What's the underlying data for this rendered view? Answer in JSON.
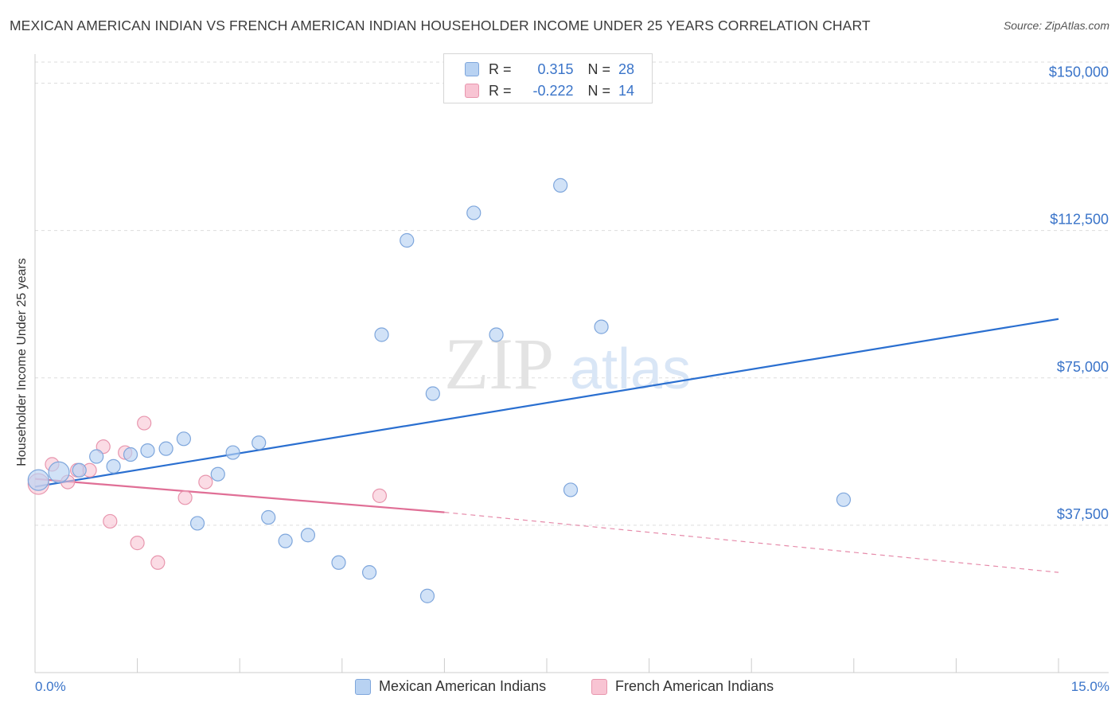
{
  "header": {
    "title": "MEXICAN AMERICAN INDIAN VS FRENCH AMERICAN INDIAN HOUSEHOLDER INCOME UNDER 25 YEARS CORRELATION CHART",
    "source": "Source: ZipAtlas.com"
  },
  "legend": {
    "series1": {
      "r_label": "R =",
      "r_value": "0.315",
      "n_label": "N =",
      "n_value": "28"
    },
    "series2": {
      "r_label": "R =",
      "r_value": "-0.222",
      "n_label": "N =",
      "n_value": "14"
    }
  },
  "watermark": {
    "zip": "ZIP",
    "atlas": "atlas"
  },
  "colors": {
    "blue_fill": "#b8d2f2",
    "blue_stroke": "#7ea6dc",
    "blue_line": "#2a6fd0",
    "pink_fill": "#f8c4d3",
    "pink_stroke": "#e896ae",
    "pink_line": "#e06f96",
    "axis_label": "#3a74c9",
    "grid": "#dddddd"
  },
  "chart_data": {
    "type": "scatter",
    "title": "MEXICAN AMERICAN INDIAN VS FRENCH AMERICAN INDIAN HOUSEHOLDER INCOME UNDER 25 YEARS CORRELATION CHART",
    "xlabel": "",
    "ylabel": "Householder Income Under 25 years",
    "xlim": [
      0,
      15
    ],
    "ylim": [
      0,
      157000
    ],
    "x_tick_labels": [
      "0.0%",
      "15.0%"
    ],
    "y_ticks": [
      37500,
      75000,
      112500,
      150000
    ],
    "y_tick_labels": [
      "$37,500",
      "$75,000",
      "$112,500",
      "$150,000"
    ],
    "series": [
      {
        "name": "Mexican American Indians",
        "r": 0.315,
        "n": 28,
        "points": [
          {
            "x": 0.05,
            "y": 49000,
            "big": true
          },
          {
            "x": 0.35,
            "y": 51000,
            "big": true
          },
          {
            "x": 0.65,
            "y": 51500
          },
          {
            "x": 0.9,
            "y": 55000
          },
          {
            "x": 1.15,
            "y": 52500
          },
          {
            "x": 1.4,
            "y": 55500
          },
          {
            "x": 1.65,
            "y": 56500
          },
          {
            "x": 1.92,
            "y": 57000
          },
          {
            "x": 2.18,
            "y": 59500
          },
          {
            "x": 2.38,
            "y": 38000
          },
          {
            "x": 2.68,
            "y": 50500
          },
          {
            "x": 2.9,
            "y": 56000
          },
          {
            "x": 3.28,
            "y": 58500
          },
          {
            "x": 3.42,
            "y": 39500
          },
          {
            "x": 3.67,
            "y": 33500
          },
          {
            "x": 4.0,
            "y": 35000
          },
          {
            "x": 4.45,
            "y": 28000
          },
          {
            "x": 4.9,
            "y": 25500
          },
          {
            "x": 5.08,
            "y": 86000
          },
          {
            "x": 5.45,
            "y": 110000
          },
          {
            "x": 5.75,
            "y": 19500
          },
          {
            "x": 5.83,
            "y": 71000
          },
          {
            "x": 6.43,
            "y": 117000
          },
          {
            "x": 6.76,
            "y": 86000
          },
          {
            "x": 7.7,
            "y": 124000
          },
          {
            "x": 7.85,
            "y": 46500
          },
          {
            "x": 8.3,
            "y": 88000
          },
          {
            "x": 11.85,
            "y": 44000
          }
        ],
        "trend": {
          "x0": 0,
          "y0": 47300,
          "x1": 15,
          "y1": 90000,
          "style": "solid"
        }
      },
      {
        "name": "French American Indians",
        "r": -0.222,
        "n": 14,
        "points": [
          {
            "x": 0.05,
            "y": 48000,
            "big": true
          },
          {
            "x": 0.25,
            "y": 53000
          },
          {
            "x": 0.48,
            "y": 48500
          },
          {
            "x": 0.62,
            "y": 51500
          },
          {
            "x": 0.8,
            "y": 51500
          },
          {
            "x": 1.0,
            "y": 57500
          },
          {
            "x": 1.1,
            "y": 38500
          },
          {
            "x": 1.32,
            "y": 56000
          },
          {
            "x": 1.5,
            "y": 33000
          },
          {
            "x": 1.6,
            "y": 63500
          },
          {
            "x": 1.8,
            "y": 28000
          },
          {
            "x": 2.2,
            "y": 44500
          },
          {
            "x": 2.5,
            "y": 48500
          },
          {
            "x": 5.05,
            "y": 45000
          }
        ],
        "trend": {
          "x0": 0,
          "y0": 49300,
          "x1": 6.0,
          "y1": 40800,
          "dashed_to_x": 15,
          "dashed_to_y": 25500,
          "style": "solid-then-dashed"
        }
      }
    ]
  },
  "bottom_legend": {
    "series1_label": "Mexican American Indians",
    "series2_label": "French American Indians"
  }
}
